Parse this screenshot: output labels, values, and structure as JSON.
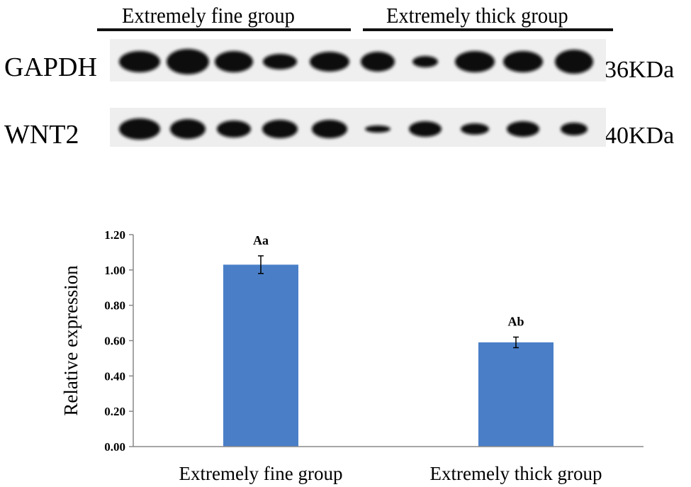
{
  "blot": {
    "group_labels": [
      "Extremely fine group",
      "Extremely thick group"
    ],
    "rows": [
      {
        "name": "GAPDH",
        "size": "36KDa"
      },
      {
        "name": "WNT2",
        "size": "40KDa"
      }
    ]
  },
  "chart_data": {
    "type": "bar",
    "categories": [
      "Extremely fine group",
      "Extremely thick group"
    ],
    "values": [
      1.03,
      0.59
    ],
    "error": [
      0.05,
      0.03
    ],
    "annotations": [
      "Aa",
      "Ab"
    ],
    "title": "",
    "xlabel": "",
    "ylabel": "Relative expression",
    "ylim": [
      0,
      1.2
    ],
    "yticks": [
      "0.00",
      "0.20",
      "0.40",
      "0.60",
      "0.80",
      "1.00",
      "1.20"
    ],
    "bar_color": "#4a7fc8",
    "grid": false
  }
}
